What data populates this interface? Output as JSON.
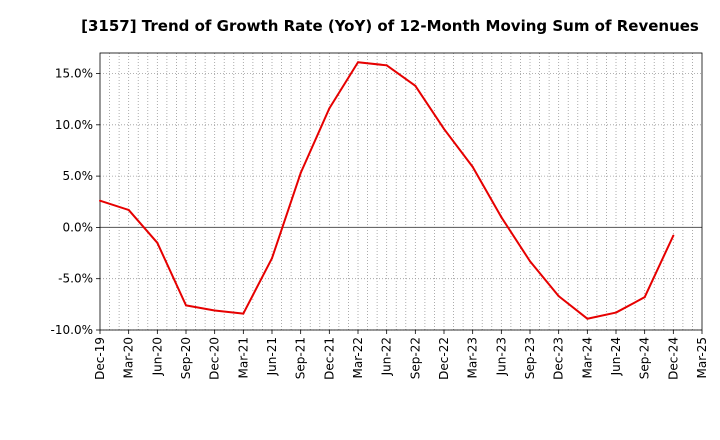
{
  "chart_data": {
    "type": "line",
    "title": "[3157]  Trend of Growth Rate (YoY) of 12-Month Moving Sum of Revenues",
    "xlabel": "",
    "ylabel": "",
    "x": [
      "Dec-19",
      "Mar-20",
      "Jun-20",
      "Sep-20",
      "Dec-20",
      "Mar-21",
      "Jun-21",
      "Sep-21",
      "Dec-21",
      "Mar-22",
      "Jun-22",
      "Sep-22",
      "Dec-22",
      "Mar-23",
      "Jun-23",
      "Sep-23",
      "Dec-23",
      "Mar-24",
      "Jun-24",
      "Sep-24",
      "Dec-24",
      "Mar-25"
    ],
    "y_ticks": [
      "15.0%",
      "10.0%",
      "5.0%",
      "0.0%",
      "-5.0%",
      "-10.0%"
    ],
    "ylim": [
      -10,
      17
    ],
    "grid": true,
    "series": [
      {
        "color": "#e60000",
        "values": [
          2.6,
          1.7,
          -1.5,
          -7.6,
          -8.1,
          -8.4,
          -3.0,
          5.3,
          11.6,
          16.1,
          15.8,
          13.8,
          9.6,
          5.9,
          1.0,
          -3.3,
          -6.7,
          -8.9,
          -8.3,
          -6.8,
          -0.8,
          null
        ]
      }
    ]
  }
}
